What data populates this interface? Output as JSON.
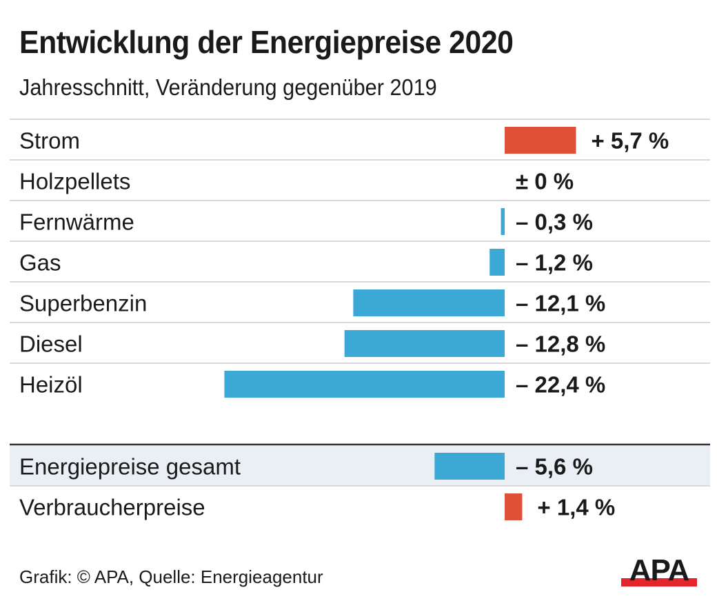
{
  "chart_data": {
    "type": "bar",
    "orientation": "horizontal",
    "title": "Entwicklung der Energiepreise 2020",
    "subtitle": "Jahresschnitt, Veränderung gegenüber 2019",
    "xlabel": "",
    "ylabel": "",
    "unit": "%",
    "grid": false,
    "xlim": [
      -22.4,
      5.7
    ],
    "categories": [
      "Strom",
      "Holzpellets",
      "Fernwärme",
      "Gas",
      "Superbenzin",
      "Diesel",
      "Heizöl"
    ],
    "values": [
      5.7,
      0,
      -0.3,
      -1.2,
      -12.1,
      -12.8,
      -22.4
    ],
    "value_labels": [
      "+ 5,7 %",
      "± 0 %",
      "– 0,3 %",
      "– 1,2 %",
      "– 12,1 %",
      "– 12,8 %",
      "– 22,4 %"
    ],
    "summary": {
      "categories": [
        "Energiepreise gesamt",
        "Verbraucherpreise"
      ],
      "values": [
        -5.6,
        1.4
      ],
      "value_labels": [
        "– 5,6 %",
        "+ 1,4 %"
      ],
      "highlighted": [
        "Energiepreise gesamt"
      ]
    },
    "colors": {
      "positive": "#de5038",
      "negative": "#3ba8d5",
      "highlight_background": "#e9eff4",
      "separator": "#d9d9d9",
      "summary_rule": "#333333"
    }
  },
  "footer": {
    "credit": "Grafik: © APA, Quelle: Energieagentur"
  },
  "logo": {
    "text": "APA",
    "text_color": "#1a1a1a",
    "bar_color": "#e3262b"
  }
}
